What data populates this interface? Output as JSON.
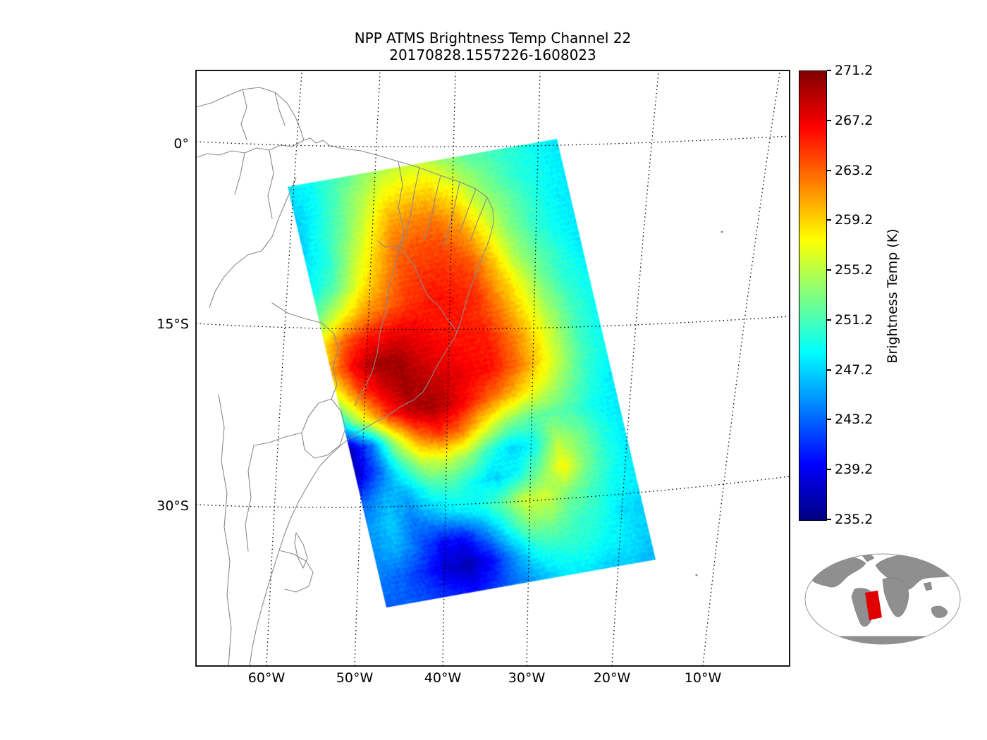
{
  "title": "NPP ATMS Brightness Temp Channel 22",
  "subtitle": "20170828.1557226-1608023",
  "axes": {
    "x_ticks": [
      "60°W",
      "50°W",
      "40°W",
      "30°W",
      "20°W",
      "10°W"
    ],
    "y_ticks": [
      "0°",
      "15°S",
      "30°S"
    ]
  },
  "colorbar": {
    "label": "Brightness Temp (K)",
    "ticks": [
      "271.2",
      "267.2",
      "263.2",
      "259.2",
      "255.2",
      "251.2",
      "247.2",
      "243.2",
      "239.2",
      "235.2"
    ]
  },
  "colors": {
    "coastline": "#8a8a8a",
    "graticule": "#000000",
    "frame": "#000000",
    "inset_land": "#8f8f8f",
    "inset_ocean": "#ffffff",
    "inset_outline": "#999999",
    "inset_marker": "#e00000",
    "background": "#ffffff"
  },
  "chart_data": {
    "type": "heatmap",
    "title": "NPP ATMS Brightness Temp Channel 22",
    "subtitle": "20170828.1557226-1608023",
    "value_label": "Brightness Temp (K)",
    "units": "K",
    "value_range": [
      235.2,
      271.2
    ],
    "colormap": "jet",
    "colorbar_ticks": [
      271.2,
      267.2,
      263.2,
      259.2,
      255.2,
      251.2,
      247.2,
      243.2,
      239.2,
      235.2
    ],
    "x_axis_ticks": [
      "60°W",
      "50°W",
      "40°W",
      "30°W",
      "20°W",
      "10°W"
    ],
    "y_axis_ticks": [
      "0°",
      "15°S",
      "30°S"
    ],
    "grid_u_cols": 13,
    "grid_v_rows": 17,
    "swath_grid_K": [
      [
        248,
        249,
        251,
        253,
        255,
        256,
        256,
        254,
        252,
        251,
        250,
        249,
        248
      ],
      [
        247,
        249,
        252,
        255,
        258,
        259,
        259,
        257,
        254,
        252,
        250,
        249,
        248
      ],
      [
        247,
        250,
        253,
        257,
        261,
        262,
        262,
        260,
        256,
        253,
        251,
        249,
        248
      ],
      [
        248,
        250,
        255,
        259,
        263,
        264,
        264,
        262,
        258,
        254,
        251,
        249,
        248
      ],
      [
        249,
        252,
        257,
        261,
        264,
        265,
        265,
        264,
        260,
        255,
        252,
        250,
        248
      ],
      [
        253,
        257,
        261,
        263,
        265,
        266,
        266,
        265,
        261,
        257,
        253,
        250,
        249
      ],
      [
        259,
        264,
        266,
        267,
        267,
        266,
        266,
        265,
        262,
        258,
        254,
        251,
        249
      ],
      [
        261,
        267,
        270,
        270,
        268,
        267,
        266,
        266,
        263,
        259,
        255,
        251,
        249
      ],
      [
        257,
        264,
        268,
        270,
        269,
        268,
        267,
        266,
        263,
        259,
        255,
        251,
        249
      ],
      [
        250,
        258,
        265,
        269,
        270,
        268,
        265,
        262,
        259,
        256,
        253,
        250,
        248
      ],
      [
        237,
        244,
        255,
        262,
        265,
        263,
        258,
        254,
        252,
        252,
        251,
        249,
        248
      ],
      [
        238,
        243,
        250,
        255,
        256,
        254,
        250,
        247,
        249,
        255,
        253,
        250,
        248
      ],
      [
        243,
        246,
        246,
        250,
        251,
        249,
        247,
        249,
        253,
        258,
        253,
        250,
        248
      ],
      [
        245,
        247,
        244,
        246,
        248,
        249,
        252,
        256,
        256,
        253,
        251,
        249,
        248
      ],
      [
        245,
        246,
        243,
        240,
        240,
        244,
        249,
        253,
        253,
        251,
        250,
        248,
        247
      ],
      [
        244,
        243,
        241,
        238,
        237,
        240,
        245,
        249,
        250,
        250,
        249,
        248,
        247
      ],
      [
        243,
        243,
        242,
        241,
        240,
        242,
        244,
        246,
        248,
        248,
        247,
        247,
        246
      ]
    ]
  }
}
